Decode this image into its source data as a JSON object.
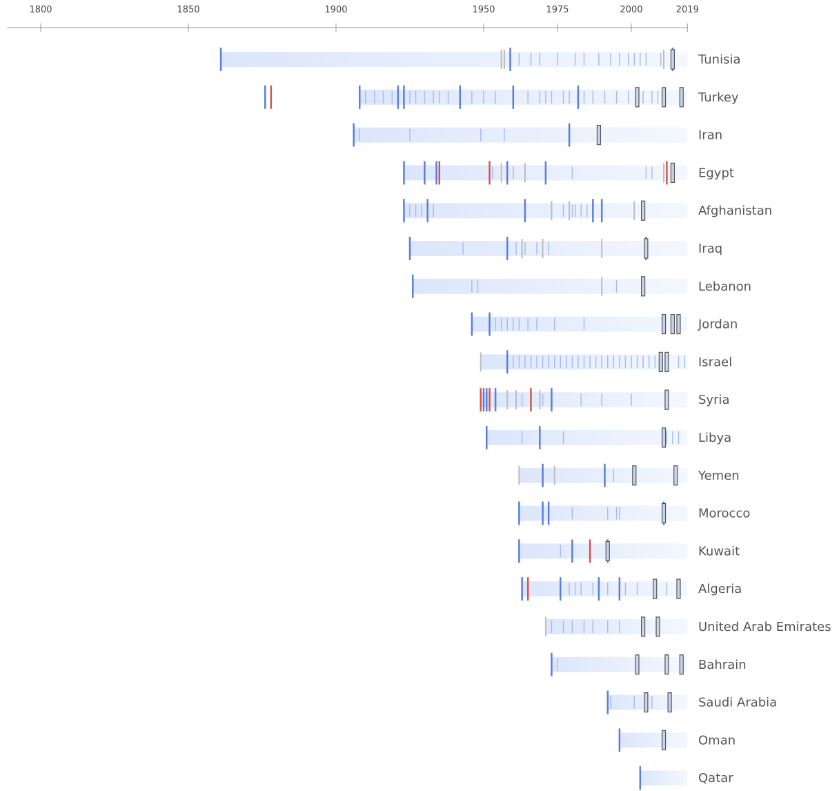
{
  "chart_data": {
    "type": "timeline",
    "x_axis": {
      "min": 1790,
      "max": 2019,
      "ticks": [
        1800,
        1850,
        1900,
        1950,
        1975,
        2000,
        2019
      ]
    },
    "colors": {
      "bar_start": "#dce6fb",
      "bar_end": "#f4f7fe",
      "major": "#5b7fd6",
      "minor": "#a4bdf0",
      "red": "#d9534f",
      "gray": "#bcbcbc",
      "box_fill": "#c8d3ec",
      "box_stroke": "#555555",
      "axis": "#999999"
    },
    "countries": [
      {
        "name": "Tunisia",
        "start": 1861,
        "end": 2019,
        "major": [
          1861,
          1959,
          2014
        ],
        "minor": [
          1962,
          1966,
          1969,
          1975,
          1981,
          1984,
          1989,
          1993,
          1996,
          1999,
          2001,
          2003,
          2005,
          2010
        ],
        "red": [],
        "gray": [
          1956,
          1957,
          2011
        ],
        "box": [
          2014
        ]
      },
      {
        "name": "Turkey",
        "start": 1908,
        "end": 2019,
        "major": [
          1876,
          1908,
          1921,
          1923,
          1942,
          1960,
          1982
        ],
        "minor": [
          1910,
          1913,
          1916,
          1919,
          1925,
          1927,
          1930,
          1933,
          1935,
          1938,
          1946,
          1950,
          1954,
          1965,
          1969,
          1971,
          1973,
          1977,
          1979,
          1984,
          1987,
          1991,
          1995,
          1999,
          2004,
          2007,
          2009
        ],
        "red": [
          1878
        ],
        "gray": [],
        "box": [
          2002,
          2011,
          2017
        ]
      },
      {
        "name": "Iran",
        "start": 1906,
        "end": 2019,
        "major": [
          1906,
          1979
        ],
        "minor": [
          1908,
          1925,
          1949,
          1957
        ],
        "red": [],
        "gray": [],
        "box": [
          1989
        ]
      },
      {
        "name": "Egypt",
        "start": 1923,
        "end": 2019,
        "major": [
          1923,
          1930,
          1934,
          1958,
          1971
        ],
        "minor": [
          1953,
          1960,
          1980,
          2005,
          2007
        ],
        "red": [
          1935,
          1952,
          2012
        ],
        "gray": [
          1956,
          1964,
          2011
        ],
        "box": [
          2014
        ]
      },
      {
        "name": "Afghanistan",
        "start": 1923,
        "end": 2019,
        "major": [
          1923,
          1931,
          1964,
          1987,
          1990
        ],
        "minor": [
          1925,
          1927,
          1929,
          1933,
          1977,
          1980,
          1981,
          1983,
          1985
        ],
        "red": [],
        "gray": [
          1973,
          1979,
          2001
        ],
        "box": [
          2004
        ]
      },
      {
        "name": "Iraq",
        "start": 1925,
        "end": 2019,
        "major": [
          1925,
          1958,
          2005
        ],
        "minor": [
          1943,
          1961,
          1964,
          1968,
          1970,
          1972
        ],
        "red": [],
        "gray": [
          1963,
          1970,
          1990
        ],
        "box": [
          2005
        ]
      },
      {
        "name": "Lebanon",
        "start": 1926,
        "end": 2019,
        "major": [
          1926
        ],
        "minor": [
          1946,
          1948,
          1995
        ],
        "red": [],
        "gray": [
          1990
        ],
        "box": [
          2004
        ]
      },
      {
        "name": "Jordan",
        "start": 1946,
        "end": 2019,
        "major": [
          1946,
          1952
        ],
        "minor": [
          1954,
          1956,
          1958,
          1960,
          1962,
          1965,
          1968,
          1974,
          1984
        ],
        "red": [],
        "gray": [],
        "box": [
          2011,
          2014,
          2016
        ]
      },
      {
        "name": "Israel",
        "start": 1949,
        "end": 2019,
        "major": [
          1958
        ],
        "minor": [
          1960,
          1962,
          1964,
          1966,
          1968,
          1970,
          1972,
          1974,
          1976,
          1978,
          1980,
          1982,
          1984,
          1986,
          1988,
          1990,
          1992,
          1994,
          1996,
          1998,
          2000,
          2002,
          2004,
          2006,
          2008,
          2016,
          2018
        ],
        "red": [],
        "gray": [
          1949
        ],
        "box": [
          2010,
          2012
        ]
      },
      {
        "name": "Syria",
        "start": 1949,
        "end": 2019,
        "major": [
          1950,
          1951,
          1954,
          1973
        ],
        "minor": [
          1963,
          1970,
          1983,
          1990,
          2000
        ],
        "red": [
          1949,
          1952,
          1966
        ],
        "gray": [
          1958,
          1961,
          1969
        ],
        "box": [
          2012
        ]
      },
      {
        "name": "Libya",
        "start": 1951,
        "end": 2019,
        "major": [
          1951,
          1969
        ],
        "minor": [
          1963,
          1977,
          2012,
          2014,
          2016
        ],
        "red": [],
        "gray": [],
        "box": [
          2011
        ]
      },
      {
        "name": "Yemen",
        "start": 1962,
        "end": 2019,
        "major": [
          1970,
          1991
        ],
        "minor": [
          1994
        ],
        "red": [],
        "gray": [
          1962,
          1974
        ],
        "box": [
          2001,
          2015
        ]
      },
      {
        "name": "Morocco",
        "start": 1962,
        "end": 2019,
        "major": [
          1962,
          1970,
          1972,
          2011
        ],
        "minor": [
          1980,
          1992,
          1995,
          1996
        ],
        "red": [],
        "gray": [],
        "box": [
          2011
        ]
      },
      {
        "name": "Kuwait",
        "start": 1962,
        "end": 2019,
        "major": [
          1962,
          1980,
          1992
        ],
        "minor": [
          1976
        ],
        "red": [
          1986
        ],
        "gray": [],
        "box": [
          1992
        ]
      },
      {
        "name": "Algeria",
        "start": 1963,
        "end": 2019,
        "major": [
          1963,
          1976,
          1989,
          1996
        ],
        "minor": [
          1979,
          1981,
          1983,
          1987,
          1992,
          1998,
          2002,
          2012
        ],
        "red": [
          1965
        ],
        "gray": [],
        "box": [
          2008,
          2016
        ]
      },
      {
        "name": "United Arab Emirates",
        "start": 1971,
        "end": 2019,
        "major": [],
        "minor": [
          1973,
          1977,
          1980,
          1984,
          1987,
          1992,
          1996
        ],
        "red": [],
        "gray": [
          1971
        ],
        "box": [
          2004,
          2009
        ]
      },
      {
        "name": "Bahrain",
        "start": 1973,
        "end": 2019,
        "major": [
          1973
        ],
        "minor": [
          1975
        ],
        "red": [],
        "gray": [],
        "box": [
          2002,
          2012,
          2017
        ]
      },
      {
        "name": "Saudi Arabia",
        "start": 1992,
        "end": 2019,
        "major": [
          1992
        ],
        "minor": [
          1993,
          2001,
          2007
        ],
        "red": [],
        "gray": [
          2005
        ],
        "box": [
          2005,
          2013
        ]
      },
      {
        "name": "Oman",
        "start": 1996,
        "end": 2019,
        "major": [
          1996
        ],
        "minor": [],
        "red": [],
        "gray": [],
        "box": [
          2011
        ]
      },
      {
        "name": "Qatar",
        "start": 2003,
        "end": 2019,
        "major": [
          2003
        ],
        "minor": [],
        "red": [],
        "gray": [],
        "box": []
      }
    ]
  }
}
